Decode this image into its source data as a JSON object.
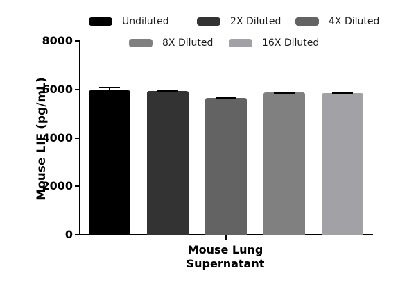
{
  "chart_data": {
    "type": "bar",
    "title": "",
    "xlabel": "Mouse Lung Supernatant",
    "xlabel_lines": [
      "Mouse Lung",
      "Supernatant"
    ],
    "ylabel": "Mouse LIF  (pg/mL)",
    "ylim": [
      0,
      8000
    ],
    "yticks": [
      0,
      2000,
      4000,
      6000,
      8000
    ],
    "ytick_labels": [
      "0",
      "2000",
      "4000",
      "6000",
      "8000"
    ],
    "categories": [
      "Mouse Lung Supernatant"
    ],
    "series": [
      {
        "name": "Undiluted",
        "values": [
          5970
        ],
        "error": [
          130
        ],
        "color": "#000000"
      },
      {
        "name": "2X Diluted",
        "values": [
          5930
        ],
        "error": [
          20
        ],
        "color": "#333333"
      },
      {
        "name": "4X Diluted",
        "values": [
          5650
        ],
        "error": [
          30
        ],
        "color": "#636363"
      },
      {
        "name": "8X Diluted",
        "values": [
          5880
        ],
        "error": [
          10
        ],
        "color": "#808080"
      },
      {
        "name": "16X Diluted",
        "values": [
          5860
        ],
        "error": [
          20
        ],
        "color": "#a2a1a5"
      }
    ],
    "legend": {
      "position": "top",
      "entries": [
        "Undiluted",
        "2X Diluted",
        "4X Diluted",
        "8X Diluted",
        "16X Diluted"
      ]
    },
    "grid": false
  }
}
